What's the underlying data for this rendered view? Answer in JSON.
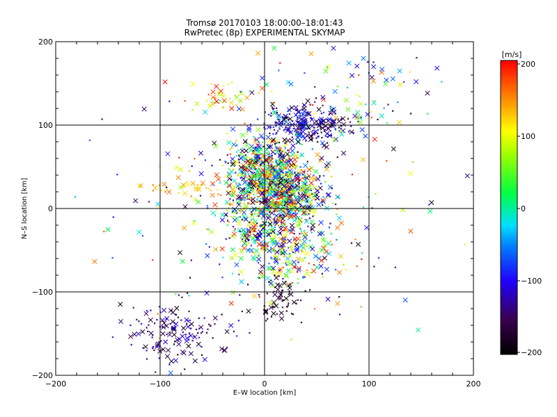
{
  "chart_data": {
    "type": "scatter",
    "title": "Tromsø 20170103 18:00:00–18:01:43",
    "subtitle": "RwPretec (8p) EXPERIMENTAL SKYMAP",
    "xlabel": "E–W location [km]",
    "ylabel": "N–S location [km]",
    "xlim": [
      -200,
      200
    ],
    "ylim": [
      -200,
      200
    ],
    "xticks": [
      "−200",
      "−100",
      "0",
      "100",
      "200"
    ],
    "yticks": [
      "−200",
      "−100",
      "0",
      "100",
      "200"
    ],
    "grid": true,
    "marker": "x",
    "colorbar": {
      "unit_label": "[m/s]",
      "range": [
        -200,
        200
      ],
      "ticks": [
        "200",
        "100",
        "0",
        "−100",
        "−200"
      ],
      "colormap": "rainbow-black (black at −200, purple, blue, cyan, green, yellow, red at 200)"
    },
    "clusters": [
      {
        "x": 0,
        "y": 42,
        "sx": 22,
        "sy": 22,
        "n": 650,
        "v": [
          -200,
          200
        ]
      },
      {
        "x": 22,
        "y": 18,
        "sx": 20,
        "sy": 18,
        "n": 450,
        "v": [
          -200,
          200
        ]
      },
      {
        "x": 40,
        "y": 100,
        "sx": 22,
        "sy": 12,
        "n": 260,
        "v": [
          -200,
          -60
        ]
      },
      {
        "x": 0,
        "y": -22,
        "sx": 24,
        "sy": 24,
        "n": 360,
        "v": [
          -200,
          200
        ]
      },
      {
        "x": 25,
        "y": -60,
        "sx": 30,
        "sy": 20,
        "n": 150,
        "v": [
          -200,
          200
        ]
      },
      {
        "x": -85,
        "y": -150,
        "sx": 25,
        "sy": 20,
        "n": 150,
        "v": [
          -200,
          -100
        ]
      },
      {
        "x": -45,
        "y": 130,
        "sx": 15,
        "sy": 10,
        "n": 40,
        "v": [
          60,
          200
        ]
      },
      {
        "x": -75,
        "y": 25,
        "sx": 25,
        "sy": 5,
        "n": 35,
        "v": [
          100,
          160
        ]
      },
      {
        "x": 15,
        "y": -110,
        "sx": 10,
        "sy": 15,
        "n": 60,
        "v": [
          -200,
          -150
        ]
      },
      {
        "x": 80,
        "y": 140,
        "sx": 45,
        "sy": 30,
        "n": 90,
        "v": [
          -200,
          200
        ]
      },
      {
        "x": 0,
        "y": 0,
        "sx": 90,
        "sy": 90,
        "n": 160,
        "v": [
          -200,
          200
        ]
      }
    ]
  }
}
